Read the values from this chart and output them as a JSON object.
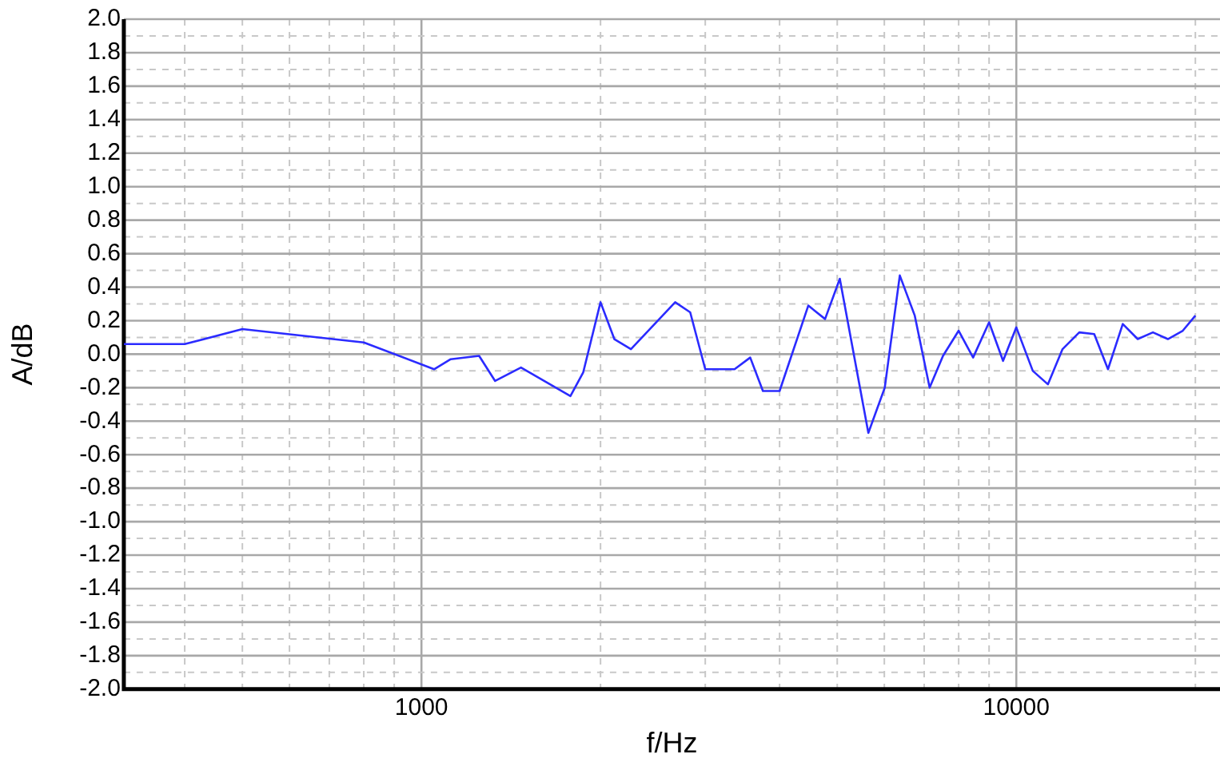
{
  "chart_data": {
    "type": "line",
    "xlabel": "f/Hz",
    "ylabel": "A/dB",
    "log": "x",
    "grid": true,
    "legend": false,
    "marker": "none",
    "line_style": "solid",
    "xlim": [
      316,
      22000
    ],
    "xticks": [
      {
        "value": 400,
        "label": null
      },
      {
        "value": 500,
        "label": null
      },
      {
        "value": 600,
        "label": null
      },
      {
        "value": 700,
        "label": null
      },
      {
        "value": 800,
        "label": null
      },
      {
        "value": 900,
        "label": null
      },
      1000,
      {
        "value": 2000,
        "label": null
      },
      {
        "value": 3000,
        "label": null
      },
      {
        "value": 4000,
        "label": null
      },
      {
        "value": 5000,
        "label": null
      },
      {
        "value": 6000,
        "label": null
      },
      {
        "value": 7000,
        "label": null
      },
      {
        "value": 8000,
        "label": null
      },
      {
        "value": 9000,
        "label": null
      },
      10000,
      {
        "value": 20000,
        "label": null
      }
    ],
    "ylim": [
      -2,
      2
    ],
    "yticks": [
      {
        "value": -2,
        "label": "-2.0"
      },
      {
        "value": -1.9,
        "label": null
      },
      {
        "value": -1.8,
        "label": "-1.8"
      },
      {
        "value": -1.7,
        "label": null
      },
      {
        "value": -1.6,
        "label": "-1.6"
      },
      {
        "value": -1.5,
        "label": null
      },
      {
        "value": -1.4,
        "label": "-1.4"
      },
      {
        "value": -1.3,
        "label": null
      },
      {
        "value": -1.2,
        "label": "-1.2"
      },
      {
        "value": -1.1,
        "label": null
      },
      {
        "value": -1,
        "label": "-1.0"
      },
      {
        "value": -0.9,
        "label": null
      },
      {
        "value": -0.8,
        "label": "-0.8"
      },
      {
        "value": -0.7,
        "label": null
      },
      {
        "value": -0.6,
        "label": "-0.6"
      },
      {
        "value": -0.5,
        "label": null
      },
      {
        "value": -0.4,
        "label": "-0.4"
      },
      {
        "value": -0.3,
        "label": null
      },
      {
        "value": -0.2,
        "label": "-0.2"
      },
      {
        "value": -0.1,
        "label": null
      },
      {
        "value": 0,
        "label": "0.0"
      },
      {
        "value": 0.1,
        "label": null
      },
      {
        "value": 0.2,
        "label": "0.2"
      },
      {
        "value": 0.3,
        "label": null
      },
      {
        "value": 0.4,
        "label": "0.4"
      },
      {
        "value": 0.5,
        "label": null
      },
      {
        "value": 0.6,
        "label": "0.6"
      },
      {
        "value": 0.7,
        "label": null
      },
      {
        "value": 0.8,
        "label": "0.8"
      },
      {
        "value": 0.9,
        "label": null
      },
      {
        "value": 1,
        "label": "1.0"
      },
      {
        "value": 1.1,
        "label": null
      },
      {
        "value": 1.2,
        "label": "1.2"
      },
      {
        "value": 1.3,
        "label": null
      },
      {
        "value": 1.4,
        "label": "1.4"
      },
      {
        "value": 1.5,
        "label": null
      },
      {
        "value": 1.6,
        "label": "1.6"
      },
      {
        "value": 1.7,
        "label": null
      },
      {
        "value": 1.8,
        "label": "1.8"
      },
      {
        "value": 1.9,
        "label": null
      },
      {
        "value": 2,
        "label": "2.0"
      }
    ],
    "x": [
      316,
      400,
      500,
      800,
      1050,
      1120,
      1250,
      1330,
      1470,
      1780,
      1870,
      2000,
      2110,
      2250,
      2670,
      2830,
      3000,
      3360,
      3570,
      3750,
      4000,
      4470,
      4770,
      5050,
      5640,
      6010,
      6370,
      6750,
      7150,
      7530,
      8000,
      8460,
      9000,
      9500,
      10000,
      10660,
      11300,
      11960,
      12760,
      13520,
      14260,
      15100,
      16000,
      16970,
      17980,
      19050,
      20000
    ],
    "series": [
      {
        "color": "#2b2bff",
        "values": [
          0.06,
          0.06,
          0.15,
          0.07,
          -0.09,
          -0.03,
          -0.01,
          -0.16,
          -0.08,
          -0.25,
          -0.11,
          0.31,
          0.09,
          0.03,
          0.31,
          0.25,
          -0.09,
          -0.09,
          -0.02,
          -0.22,
          -0.22,
          0.29,
          0.21,
          0.45,
          -0.47,
          -0.2,
          0.47,
          0.23,
          -0.2,
          -0.01,
          0.14,
          -0.02,
          0.19,
          -0.04,
          0.16,
          -0.1,
          -0.18,
          0.03,
          0.13,
          0.12,
          -0.09,
          0.18,
          0.09,
          0.13,
          0.09,
          0.14,
          0.23
        ]
      }
    ]
  }
}
